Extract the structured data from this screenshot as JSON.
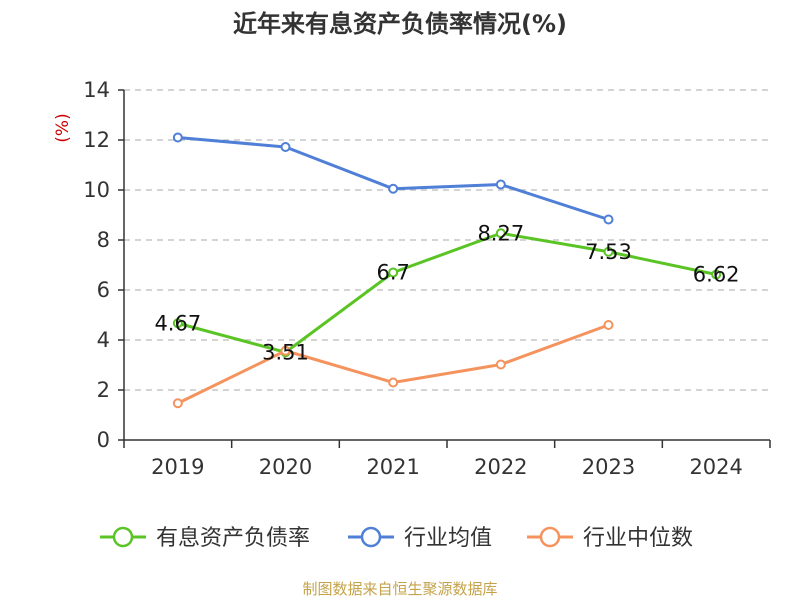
{
  "title": "近年来有息资产负债率情况(%)",
  "source": "制图数据来自恒生聚源数据库",
  "chart_data": {
    "type": "line",
    "title": "近年来有息资产负债率情况(%)",
    "xlabel": "",
    "ylabel": "(%)",
    "ylim": [
      0,
      14
    ],
    "yticks": [
      0,
      2,
      4,
      6,
      8,
      10,
      12,
      14
    ],
    "categories": [
      "2019",
      "2020",
      "2021",
      "2022",
      "2023",
      "2024"
    ],
    "series": [
      {
        "name": "有息资产负债率",
        "color": "#5bc425",
        "values": [
          4.67,
          3.51,
          6.7,
          8.27,
          7.53,
          6.62
        ],
        "labels": [
          "4.67",
          "3.51",
          "6.7",
          "8.27",
          "7.53",
          "6.62"
        ]
      },
      {
        "name": "行业均值",
        "color": "#4f7fd6",
        "values": [
          12.1,
          11.72,
          10.05,
          10.22,
          8.82,
          null
        ]
      },
      {
        "name": "行业中位数",
        "color": "#f4935e",
        "values": [
          1.47,
          3.57,
          2.3,
          3.02,
          4.6,
          null
        ]
      }
    ],
    "grid": true,
    "legend": "bottom"
  }
}
